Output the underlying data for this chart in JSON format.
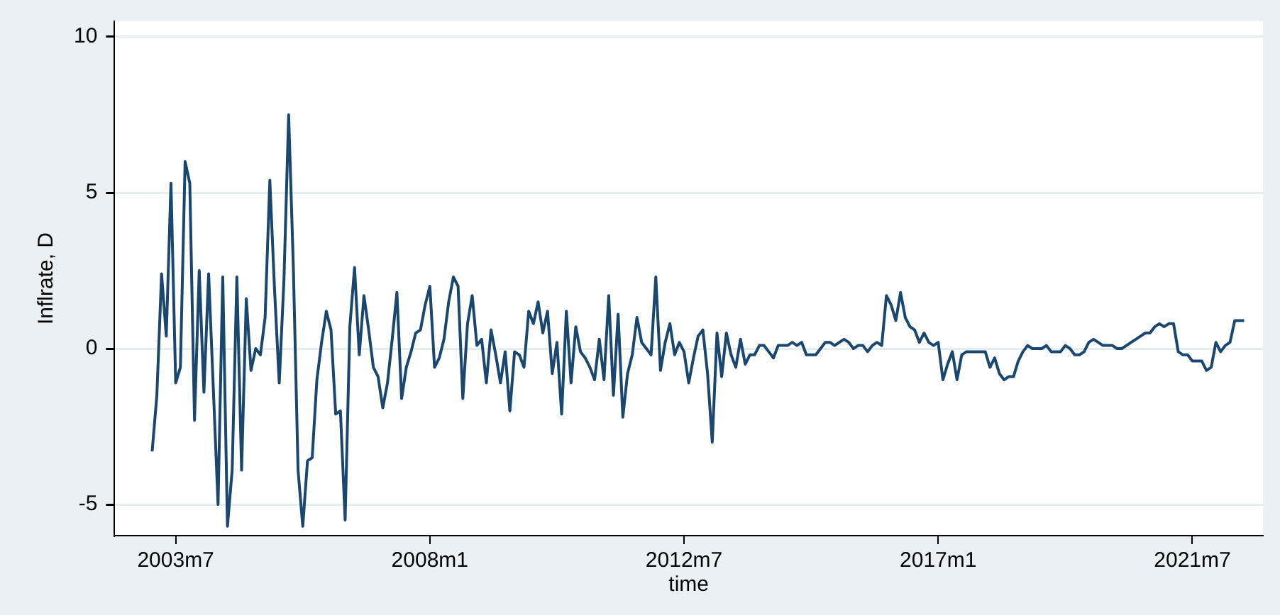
{
  "chart_data": {
    "type": "line",
    "xlabel": "time",
    "ylabel": "Inflrate, D",
    "xlim": [
      "2002-06",
      "2022-10"
    ],
    "xticks": [
      {
        "value": "2003-07",
        "label": "2003m7"
      },
      {
        "value": "2008-01",
        "label": "2008m1"
      },
      {
        "value": "2012-07",
        "label": "2012m7"
      },
      {
        "value": "2017-01",
        "label": "2017m1"
      },
      {
        "value": "2021-07",
        "label": "2021m7"
      }
    ],
    "ylim": [
      -6,
      10.5
    ],
    "yticks": [
      -5,
      0,
      5,
      10
    ],
    "grid": "y",
    "legend": false,
    "marker": "none",
    "line_style": "solid",
    "x": [
      "2003-02",
      "2003-03",
      "2003-04",
      "2003-05",
      "2003-06",
      "2003-07",
      "2003-08",
      "2003-09",
      "2003-10",
      "2003-11",
      "2003-12",
      "2004-01",
      "2004-02",
      "2004-03",
      "2004-04",
      "2004-05",
      "2004-06",
      "2004-07",
      "2004-08",
      "2004-09",
      "2004-10",
      "2004-11",
      "2004-12",
      "2005-01",
      "2005-02",
      "2005-03",
      "2005-04",
      "2005-05",
      "2005-06",
      "2005-07",
      "2005-08",
      "2005-09",
      "2005-10",
      "2005-11",
      "2005-12",
      "2006-01",
      "2006-02",
      "2006-03",
      "2006-04",
      "2006-05",
      "2006-06",
      "2006-07",
      "2006-08",
      "2006-09",
      "2006-10",
      "2006-11",
      "2006-12",
      "2007-01",
      "2007-02",
      "2007-03",
      "2007-04",
      "2007-05",
      "2007-06",
      "2007-07",
      "2007-08",
      "2007-09",
      "2007-10",
      "2007-11",
      "2007-12",
      "2008-01",
      "2008-02",
      "2008-03",
      "2008-04",
      "2008-05",
      "2008-06",
      "2008-07",
      "2008-08",
      "2008-09",
      "2008-10",
      "2008-11",
      "2008-12",
      "2009-01",
      "2009-02",
      "2009-03",
      "2009-04",
      "2009-05",
      "2009-06",
      "2009-07",
      "2009-08",
      "2009-09",
      "2009-10",
      "2009-11",
      "2009-12",
      "2010-01",
      "2010-02",
      "2010-03",
      "2010-04",
      "2010-05",
      "2010-06",
      "2010-07",
      "2010-08",
      "2010-09",
      "2010-10",
      "2010-11",
      "2010-12",
      "2011-01",
      "2011-02",
      "2011-03",
      "2011-04",
      "2011-05",
      "2011-06",
      "2011-07",
      "2011-08",
      "2011-09",
      "2011-10",
      "2011-11",
      "2011-12",
      "2012-01",
      "2012-02",
      "2012-03",
      "2012-04",
      "2012-05",
      "2012-06",
      "2012-07",
      "2012-08",
      "2012-09",
      "2012-10",
      "2012-11",
      "2012-12",
      "2013-01",
      "2013-02",
      "2013-03",
      "2013-04",
      "2013-05",
      "2013-06",
      "2013-07",
      "2013-08",
      "2013-09",
      "2013-10",
      "2013-11",
      "2013-12",
      "2014-01",
      "2014-02",
      "2014-03",
      "2014-04",
      "2014-05",
      "2014-06",
      "2014-07",
      "2014-08",
      "2014-09",
      "2014-10",
      "2014-11",
      "2014-12",
      "2015-01",
      "2015-02",
      "2015-03",
      "2015-04",
      "2015-05",
      "2015-06",
      "2015-07",
      "2015-08",
      "2015-09",
      "2015-10",
      "2015-11",
      "2015-12",
      "2016-01",
      "2016-02",
      "2016-03",
      "2016-04",
      "2016-05",
      "2016-06",
      "2016-07",
      "2016-08",
      "2016-09",
      "2016-10",
      "2016-11",
      "2016-12",
      "2017-01",
      "2017-02",
      "2017-03",
      "2017-04",
      "2017-05",
      "2017-06",
      "2017-07",
      "2017-08",
      "2017-09",
      "2017-10",
      "2017-11",
      "2017-12",
      "2018-01",
      "2018-02",
      "2018-03",
      "2018-04",
      "2018-05",
      "2018-06",
      "2018-07",
      "2018-08",
      "2018-09",
      "2018-10",
      "2018-11",
      "2018-12",
      "2019-01",
      "2019-02",
      "2019-03",
      "2019-04",
      "2019-05",
      "2019-06",
      "2019-07",
      "2019-08",
      "2019-09",
      "2019-10",
      "2019-11",
      "2019-12",
      "2020-01",
      "2020-02",
      "2020-03",
      "2020-04",
      "2020-05",
      "2020-06",
      "2020-07",
      "2020-08",
      "2020-09",
      "2020-10",
      "2020-11",
      "2020-12",
      "2021-01",
      "2021-02",
      "2021-03",
      "2021-04",
      "2021-05",
      "2021-06",
      "2021-07",
      "2021-08",
      "2021-09",
      "2021-10",
      "2021-11",
      "2021-12",
      "2022-01",
      "2022-02",
      "2022-03",
      "2022-04",
      "2022-05",
      "2022-06"
    ],
    "series": [
      {
        "color": "#1a476f",
        "values": [
          -3.3,
          -1.5,
          2.4,
          0.4,
          5.3,
          -1.1,
          -0.6,
          6.0,
          5.3,
          -2.3,
          2.5,
          -1.4,
          2.4,
          -1.3,
          -5.0,
          2.3,
          -5.7,
          -3.9,
          2.3,
          -3.9,
          1.6,
          -0.7,
          0,
          -0.2,
          1.0,
          5.4,
          1.9,
          -1.1,
          2.2,
          7.5,
          2.6,
          -3.9,
          -5.7,
          -3.6,
          -3.5,
          -1.0,
          0.2,
          1.2,
          0.6,
          -2.1,
          -2.0,
          -5.5,
          0.7,
          2.6,
          -0.2,
          1.7,
          0.6,
          -0.6,
          -0.9,
          -1.9,
          -1.1,
          0.3,
          1.8,
          -1.6,
          -0.6,
          -0.1,
          0.5,
          0.6,
          1.4,
          2.0,
          -0.6,
          -0.3,
          0.3,
          1.5,
          2.3,
          2.0,
          -1.6,
          0.8,
          1.7,
          0.1,
          0.3,
          -1.1,
          0.6,
          -0.2,
          -1.1,
          -0.1,
          -2.0,
          -0.1,
          -0.2,
          -0.6,
          1.2,
          0.8,
          1.5,
          0.5,
          1.2,
          -0.8,
          0.2,
          -2.1,
          1.2,
          -1.1,
          0.7,
          -0.1,
          -0.3,
          -0.6,
          -1.0,
          0.3,
          -1.0,
          1.7,
          -1.5,
          1.1,
          -2.2,
          -0.8,
          -0.2,
          1.0,
          0.2,
          0,
          -0.2,
          2.3,
          -0.7,
          0.2,
          0.8,
          -0.2,
          0.2,
          -0.1,
          -1.1,
          -0.3,
          0.4,
          0.6,
          -0.8,
          -3.0,
          0.5,
          -0.9,
          0.5,
          -0.2,
          -0.6,
          0.3,
          -0.5,
          -0.2,
          -0.2,
          0.1,
          0.1,
          -0.1,
          -0.3,
          0.1,
          0.1,
          0.1,
          0.2,
          0.1,
          0.2,
          -0.2,
          -0.2,
          -0.2,
          0,
          0.2,
          0.2,
          0.1,
          0.2,
          0.3,
          0.2,
          0,
          0.1,
          0.1,
          -0.1,
          0.1,
          0.2,
          0.1,
          1.7,
          1.4,
          0.9,
          1.8,
          1.0,
          0.7,
          0.6,
          0.2,
          0.5,
          0.2,
          0.1,
          0.2,
          -1.0,
          -0.5,
          -0.1,
          -1.0,
          -0.2,
          -0.1,
          -0.1,
          -0.1,
          -0.1,
          -0.1,
          -0.6,
          -0.3,
          -0.8,
          -1.0,
          -0.9,
          -0.9,
          -0.4,
          -0.1,
          0.1,
          0,
          0,
          0,
          0.1,
          -0.1,
          -0.1,
          -0.1,
          0.1,
          0,
          -0.2,
          -0.2,
          -0.1,
          0.2,
          0.3,
          0.2,
          0.1,
          0.1,
          0.1,
          0,
          0,
          0.1,
          0.2,
          0.3,
          0.4,
          0.5,
          0.5,
          0.7,
          0.8,
          0.7,
          0.8,
          0.8,
          -0.1,
          -0.2,
          -0.2,
          -0.4,
          -0.4,
          -0.4,
          -0.7,
          -0.6,
          0.2,
          -0.1,
          0.1,
          0.2,
          0.9,
          0.9,
          0.9
        ]
      }
    ]
  }
}
